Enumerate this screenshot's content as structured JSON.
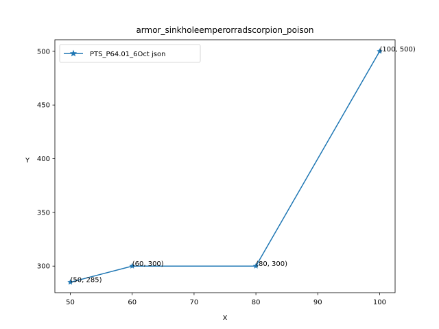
{
  "chart_data": {
    "type": "line",
    "title": "armor_sinkholeemperorradscorpion_poison",
    "xlabel": "X",
    "ylabel": "Y",
    "xlim": [
      47.5,
      102.5
    ],
    "ylim": [
      275.25,
      510.75
    ],
    "xticks": [
      50,
      60,
      70,
      80,
      90,
      100
    ],
    "yticks": [
      300,
      350,
      400,
      450,
      500
    ],
    "grid": false,
    "legend_position": "top-left",
    "series": [
      {
        "name": "PTS_P64.01_6Oct json",
        "color": "#1f77b4",
        "marker": "star",
        "x": [
          50,
          60,
          80,
          100
        ],
        "y": [
          285,
          300,
          300,
          500
        ],
        "labels": [
          "(50, 285)",
          "(60, 300)",
          "(80, 300)",
          "(100, 500)"
        ]
      }
    ]
  }
}
